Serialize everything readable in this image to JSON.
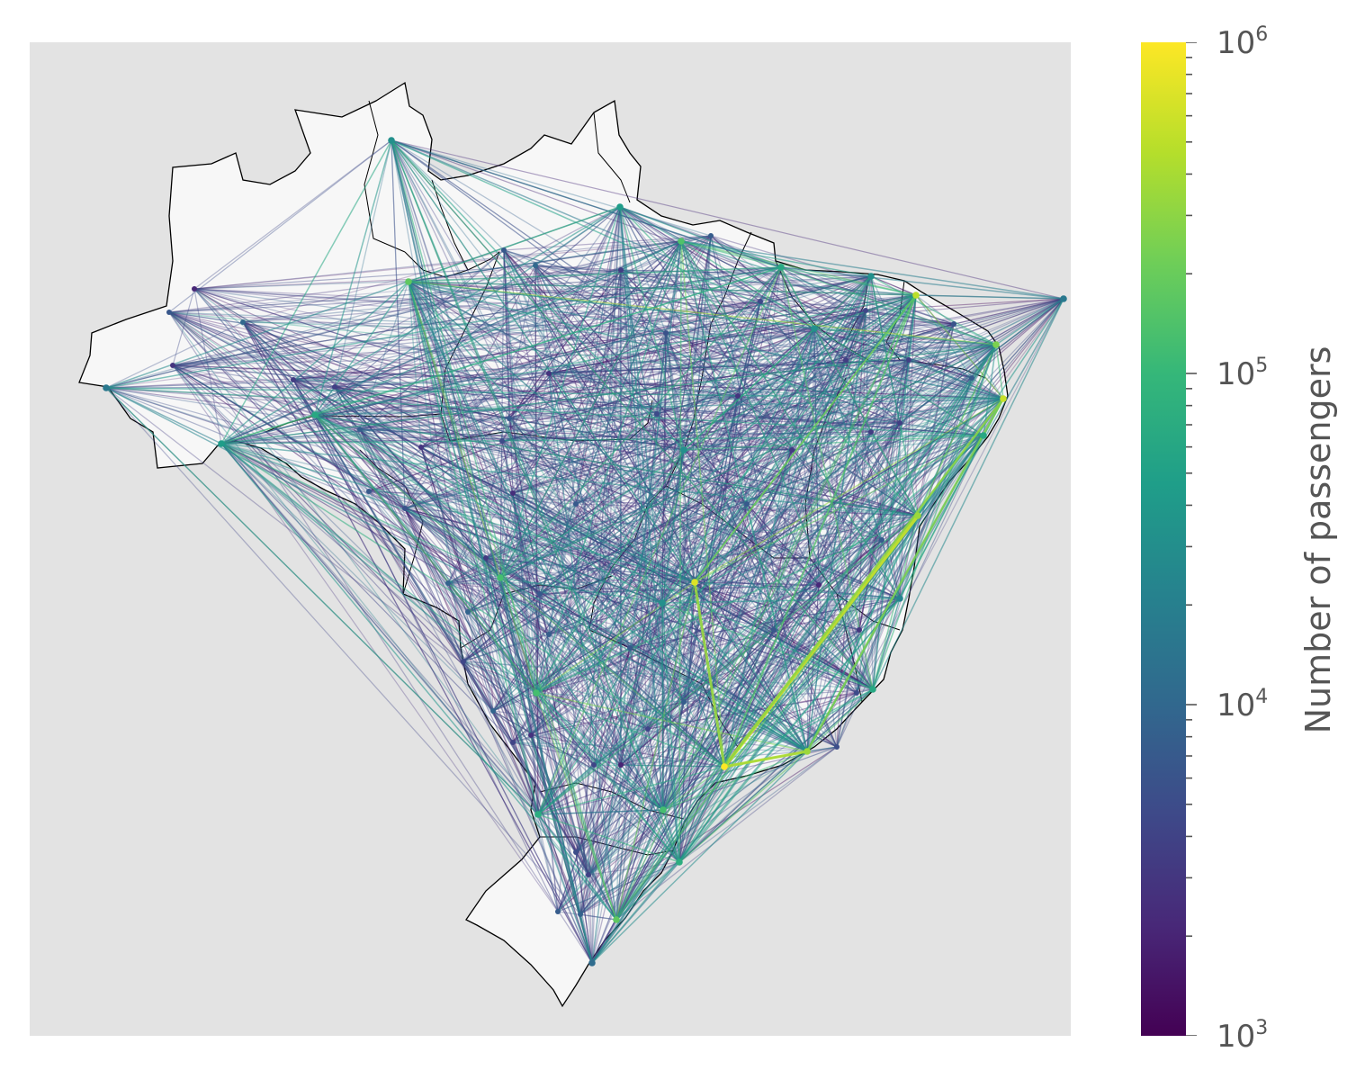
{
  "colorbar": {
    "label": "Number of passengers",
    "scale": "log",
    "range": [
      1000,
      1000000
    ],
    "ticks": [
      {
        "base": "10",
        "exp": "6",
        "value": 1000000
      },
      {
        "base": "10",
        "exp": "5",
        "value": 100000
      },
      {
        "base": "10",
        "exp": "4",
        "value": 10000
      },
      {
        "base": "10",
        "exp": "3",
        "value": 1000
      }
    ],
    "colormap": "viridis",
    "stops": [
      "#440154",
      "#482878",
      "#3e4989",
      "#31688e",
      "#26828e",
      "#1f9e89",
      "#35b779",
      "#6ece58",
      "#b5de2b",
      "#fde725"
    ]
  },
  "map": {
    "subject": "Brazil air passenger flow network",
    "background_color": "#e3e3e3",
    "land_color": "#f7f7f7",
    "border_color": "#000000"
  }
}
